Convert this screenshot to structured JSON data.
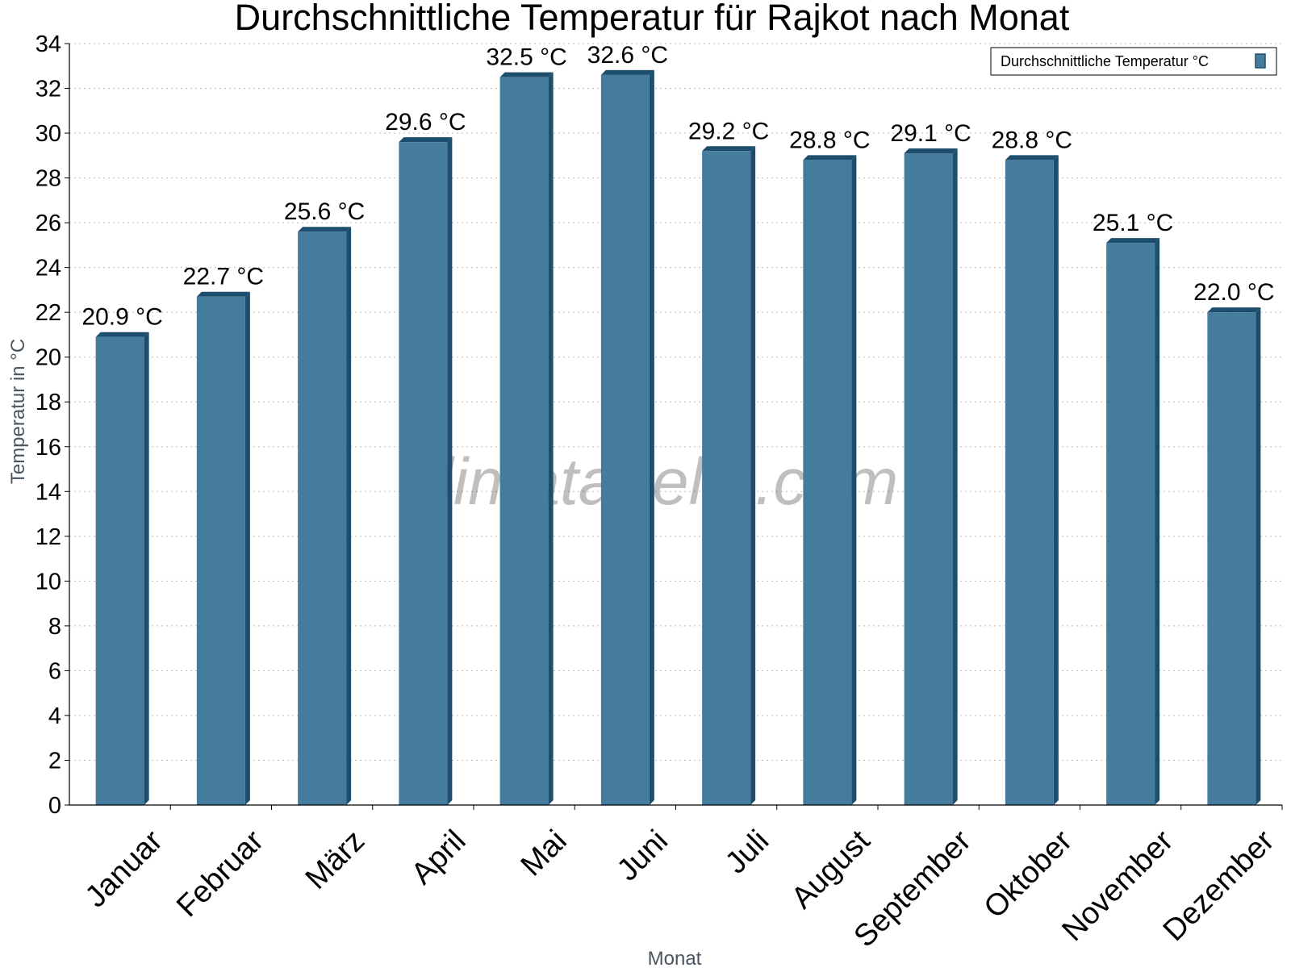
{
  "chart_data": {
    "type": "bar",
    "title": "Durchschnittliche Temperatur für Rajkot nach Monat",
    "xlabel": "Monat",
    "ylabel": "Temperatur in °C",
    "categories": [
      "Januar",
      "Februar",
      "März",
      "April",
      "Mai",
      "Juni",
      "Juli",
      "August",
      "September",
      "Oktober",
      "November",
      "Dezember"
    ],
    "series": [
      {
        "name": "Durchschnittliche Temperatur °C",
        "values": [
          20.9,
          22.7,
          25.6,
          29.6,
          32.5,
          32.6,
          29.2,
          28.8,
          29.1,
          28.8,
          25.1,
          22.0
        ],
        "data_labels": [
          "20.9 °C",
          "22.7 °C",
          "25.6 °C",
          "29.6 °C",
          "32.5 °C",
          "32.6 °C",
          "29.2 °C",
          "28.8 °C",
          "29.1 °C",
          "28.8 °C",
          "25.1 °C",
          "22.0 °C"
        ],
        "color": "#457b9d",
        "edge_color": "#1d4e6e"
      }
    ],
    "ylim": [
      0,
      34
    ],
    "yticks": [
      "0",
      "2",
      "4",
      "6",
      "8",
      "10",
      "12",
      "14",
      "16",
      "18",
      "20",
      "22",
      "24",
      "26",
      "28",
      "30",
      "32",
      "34"
    ],
    "grid": true,
    "legend_position": "top-right"
  },
  "watermark": "klimatabelle.com"
}
